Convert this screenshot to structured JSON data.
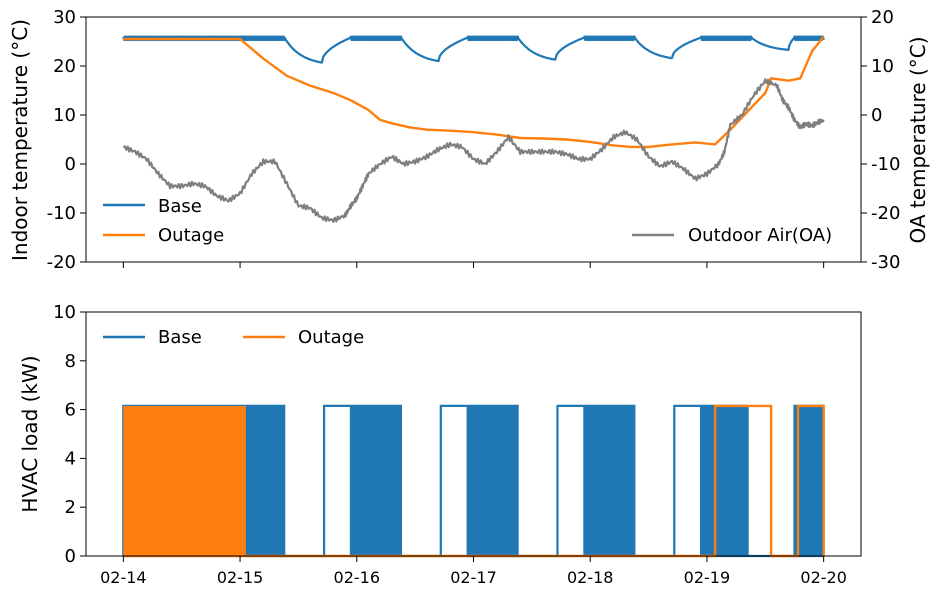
{
  "chart_data": [
    {
      "type": "line",
      "title": "",
      "xlabel": "",
      "ylabel": "Indoor temperature (°C)",
      "ylim": [
        -20,
        30
      ],
      "yticks": [
        -20,
        -10,
        0,
        10,
        20,
        30
      ],
      "y2label": "OA temperature (°C)",
      "y2lim": [
        -30,
        20
      ],
      "y2ticks": [
        -30,
        -20,
        -10,
        0,
        10,
        20
      ],
      "xlim": [
        -0.32,
        6.32
      ],
      "x_unit": "days since 02-14",
      "grid": false,
      "legend": [
        {
          "label": "Base",
          "color": "#1f77b4",
          "placement": "lower-left"
        },
        {
          "label": "Outage",
          "color": "#ff7f0e",
          "placement": "lower-left"
        },
        {
          "label": "Outdoor Air(OA)",
          "color": "#7f7f7f",
          "placement": "lower-right"
        }
      ],
      "series": [
        {
          "name": "Base",
          "axis": "left",
          "color": "#1f77b4",
          "segments": [
            {
              "from": 0.0,
              "to": 1.38,
              "style": "oscillating",
              "low": 25.3,
              "high": 26.0
            },
            {
              "from": 1.38,
              "to": 1.7,
              "style": "decay",
              "start": 25.8,
              "end": 20.7
            },
            {
              "from": 1.7,
              "to": 1.95,
              "style": "recover",
              "start": 20.7,
              "end": 25.8
            },
            {
              "from": 1.95,
              "to": 2.38,
              "style": "oscillating",
              "low": 25.3,
              "high": 26.0
            },
            {
              "from": 2.38,
              "to": 2.7,
              "style": "decay",
              "start": 25.8,
              "end": 21.0
            },
            {
              "from": 2.7,
              "to": 2.95,
              "style": "recover",
              "start": 21.0,
              "end": 25.8
            },
            {
              "from": 2.95,
              "to": 3.38,
              "style": "oscillating",
              "low": 25.3,
              "high": 26.0
            },
            {
              "from": 3.38,
              "to": 3.7,
              "style": "decay",
              "start": 25.8,
              "end": 21.3
            },
            {
              "from": 3.7,
              "to": 3.95,
              "style": "recover",
              "start": 21.3,
              "end": 25.8
            },
            {
              "from": 3.95,
              "to": 4.38,
              "style": "oscillating",
              "low": 25.3,
              "high": 26.0
            },
            {
              "from": 4.38,
              "to": 4.7,
              "style": "decay",
              "start": 25.8,
              "end": 21.6
            },
            {
              "from": 4.7,
              "to": 4.95,
              "style": "recover",
              "start": 21.6,
              "end": 25.8
            },
            {
              "from": 4.95,
              "to": 5.38,
              "style": "oscillating",
              "low": 25.3,
              "high": 26.0
            },
            {
              "from": 5.38,
              "to": 5.7,
              "style": "decay",
              "start": 25.8,
              "end": 23.3
            },
            {
              "from": 5.7,
              "to": 5.75,
              "style": "recover",
              "start": 23.3,
              "end": 25.8
            },
            {
              "from": 5.75,
              "to": 6.0,
              "style": "oscillating",
              "low": 25.3,
              "high": 26.0
            }
          ]
        },
        {
          "name": "Outage",
          "axis": "left",
          "color": "#ff7f0e",
          "x": [
            0,
            1.0,
            1.05,
            1.2,
            1.4,
            1.6,
            1.8,
            1.95,
            2.1,
            2.2,
            2.3,
            2.45,
            2.6,
            2.8,
            3.0,
            3.2,
            3.4,
            3.6,
            3.8,
            4.0,
            4.2,
            4.35,
            4.5,
            4.7,
            4.9,
            5.07,
            5.2,
            5.3,
            5.4,
            5.5,
            5.55,
            5.7,
            5.8,
            5.9,
            6.0
          ],
          "y": [
            25.5,
            25.5,
            24.5,
            21.5,
            18.0,
            16.0,
            14.5,
            13.0,
            11.0,
            9.0,
            8.3,
            7.5,
            7.0,
            6.8,
            6.5,
            6.0,
            5.3,
            5.2,
            5.0,
            4.5,
            3.8,
            3.5,
            3.5,
            4.0,
            4.4,
            4.0,
            7.0,
            9.5,
            12.0,
            14.5,
            17.5,
            17.0,
            17.5,
            23.0,
            26.0
          ]
        },
        {
          "name": "Outdoor Air(OA)",
          "axis": "right",
          "color": "#7f7f7f",
          "x": [
            0,
            0.1,
            0.2,
            0.3,
            0.4,
            0.5,
            0.6,
            0.7,
            0.8,
            0.9,
            1.0,
            1.1,
            1.2,
            1.3,
            1.4,
            1.5,
            1.6,
            1.7,
            1.8,
            1.9,
            1.95,
            2.0,
            2.05,
            2.1,
            2.2,
            2.3,
            2.4,
            2.5,
            2.6,
            2.7,
            2.8,
            2.9,
            3.0,
            3.1,
            3.2,
            3.3,
            3.4,
            3.5,
            3.6,
            3.7,
            3.8,
            3.9,
            4.0,
            4.1,
            4.2,
            4.3,
            4.4,
            4.5,
            4.6,
            4.7,
            4.8,
            4.9,
            5.0,
            5.1,
            5.15,
            5.2,
            5.3,
            5.4,
            5.5,
            5.6,
            5.65,
            5.7,
            5.75,
            5.8,
            5.85,
            5.9,
            5.95,
            6.0
          ],
          "y": [
            -6.5,
            -7.5,
            -9.0,
            -12.0,
            -14.5,
            -14.5,
            -14.0,
            -14.5,
            -16.5,
            -17.5,
            -16.0,
            -12.0,
            -9.5,
            -9.5,
            -14.0,
            -18.5,
            -19.0,
            -21.0,
            -21.5,
            -20.5,
            -18.5,
            -17.0,
            -14.5,
            -12.0,
            -10.0,
            -8.5,
            -10.0,
            -9.5,
            -8.5,
            -7.0,
            -6.0,
            -6.5,
            -9.0,
            -10.0,
            -7.5,
            -4.5,
            -7.5,
            -7.5,
            -7.5,
            -7.5,
            -8.0,
            -9.0,
            -9.0,
            -7.0,
            -4.5,
            -3.5,
            -5.0,
            -8.5,
            -10.5,
            -9.5,
            -11.0,
            -13.0,
            -12.0,
            -10.0,
            -7.5,
            -2.0,
            0.0,
            4.0,
            7.0,
            6.0,
            3.0,
            1.5,
            -1.0,
            -2.5,
            -1.8,
            -2.2,
            -1.5,
            -1.0
          ]
        }
      ]
    },
    {
      "type": "line",
      "title": "",
      "xlabel": "",
      "ylabel": "HVAC load (kW)",
      "ylim": [
        0,
        10
      ],
      "yticks": [
        0,
        2,
        4,
        6,
        8,
        10
      ],
      "xlim": [
        -0.32,
        6.32
      ],
      "x_unit": "days since 02-14",
      "xticks": [
        0,
        1,
        2,
        3,
        4,
        5,
        6
      ],
      "xtick_labels": [
        "02-14",
        "02-15",
        "02-16",
        "02-17",
        "02-18",
        "02-19",
        "02-20"
      ],
      "grid": false,
      "legend": [
        {
          "label": "Base",
          "color": "#1f77b4",
          "placement": "top-left"
        },
        {
          "label": "Outage",
          "color": "#ff7f0e",
          "placement": "top-left"
        }
      ],
      "series": [
        {
          "name": "Base",
          "color": "#1f77b4",
          "on_level": 6.15,
          "off_level": 0,
          "continuous_on": [
            [
              0.0,
              1.05
            ],
            [
              1.72,
              1.95
            ],
            [
              2.72,
              2.95
            ],
            [
              3.72,
              3.95
            ],
            [
              4.72,
              4.95
            ]
          ],
          "cycling": [
            [
              1.05,
              1.38
            ],
            [
              1.95,
              2.38
            ],
            [
              2.95,
              3.38
            ],
            [
              3.95,
              4.38
            ],
            [
              4.95,
              5.35
            ],
            [
              5.75,
              6.0
            ]
          ]
        },
        {
          "name": "Outage",
          "color": "#ff7f0e",
          "on_level": 6.15,
          "off_level": 0,
          "continuous_on": [
            [
              0.0,
              1.05
            ],
            [
              5.07,
              5.55
            ],
            [
              5.78,
              6.0
            ]
          ],
          "cycling": []
        }
      ]
    }
  ]
}
